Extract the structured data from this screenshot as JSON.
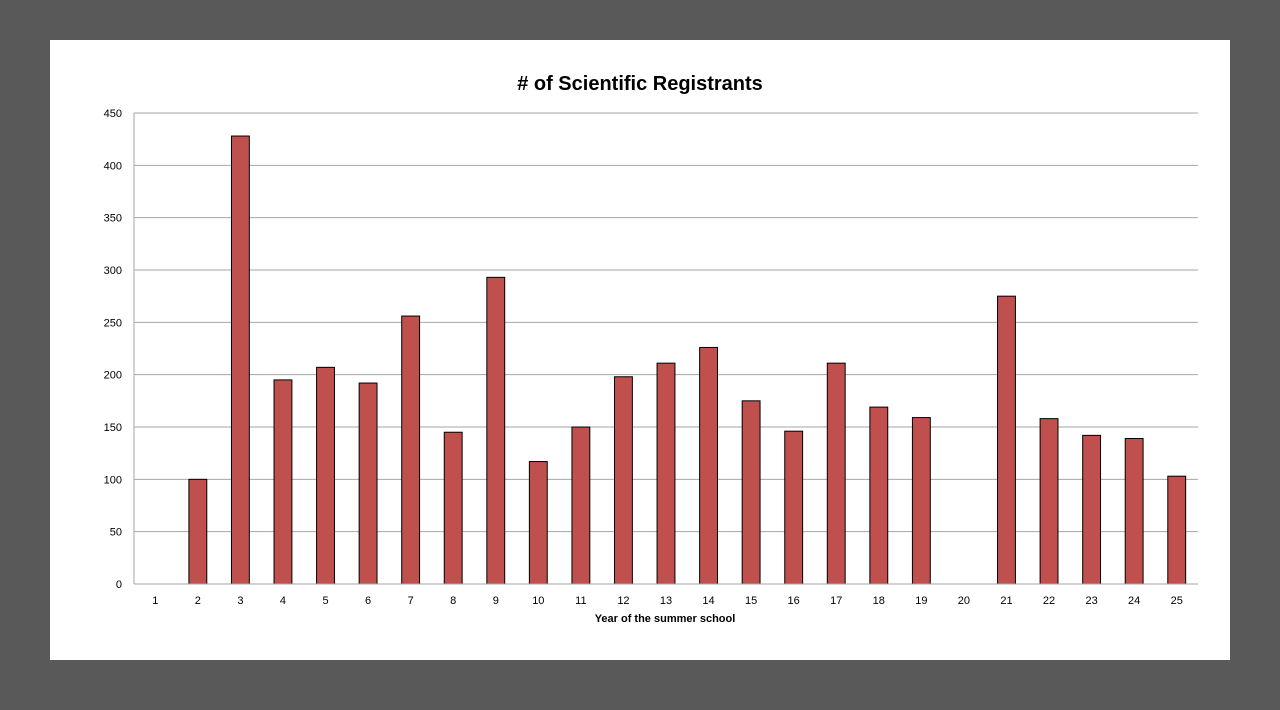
{
  "colors": {
    "background": "#595959",
    "panel": "#ffffff",
    "bar_fill": "#c0504d",
    "bar_stroke": "#000000",
    "grid": "#a6a6a6"
  },
  "chart_data": {
    "type": "bar",
    "title": "# of Scientific Registrants",
    "xlabel": "Year of the summer school",
    "ylabel": "",
    "ylim": [
      0,
      450
    ],
    "yticks": [
      0,
      50,
      100,
      150,
      200,
      250,
      300,
      350,
      400,
      450
    ],
    "grid": true,
    "legend": "none",
    "categories": [
      "1",
      "2",
      "3",
      "4",
      "5",
      "6",
      "7",
      "8",
      "9",
      "10",
      "11",
      "12",
      "13",
      "14",
      "15",
      "16",
      "17",
      "18",
      "19",
      "20",
      "21",
      "22",
      "23",
      "24",
      "25"
    ],
    "values": [
      0,
      100,
      428,
      195,
      207,
      192,
      256,
      145,
      293,
      117,
      150,
      198,
      211,
      226,
      175,
      146,
      211,
      169,
      159,
      0,
      275,
      158,
      142,
      139,
      103
    ]
  }
}
